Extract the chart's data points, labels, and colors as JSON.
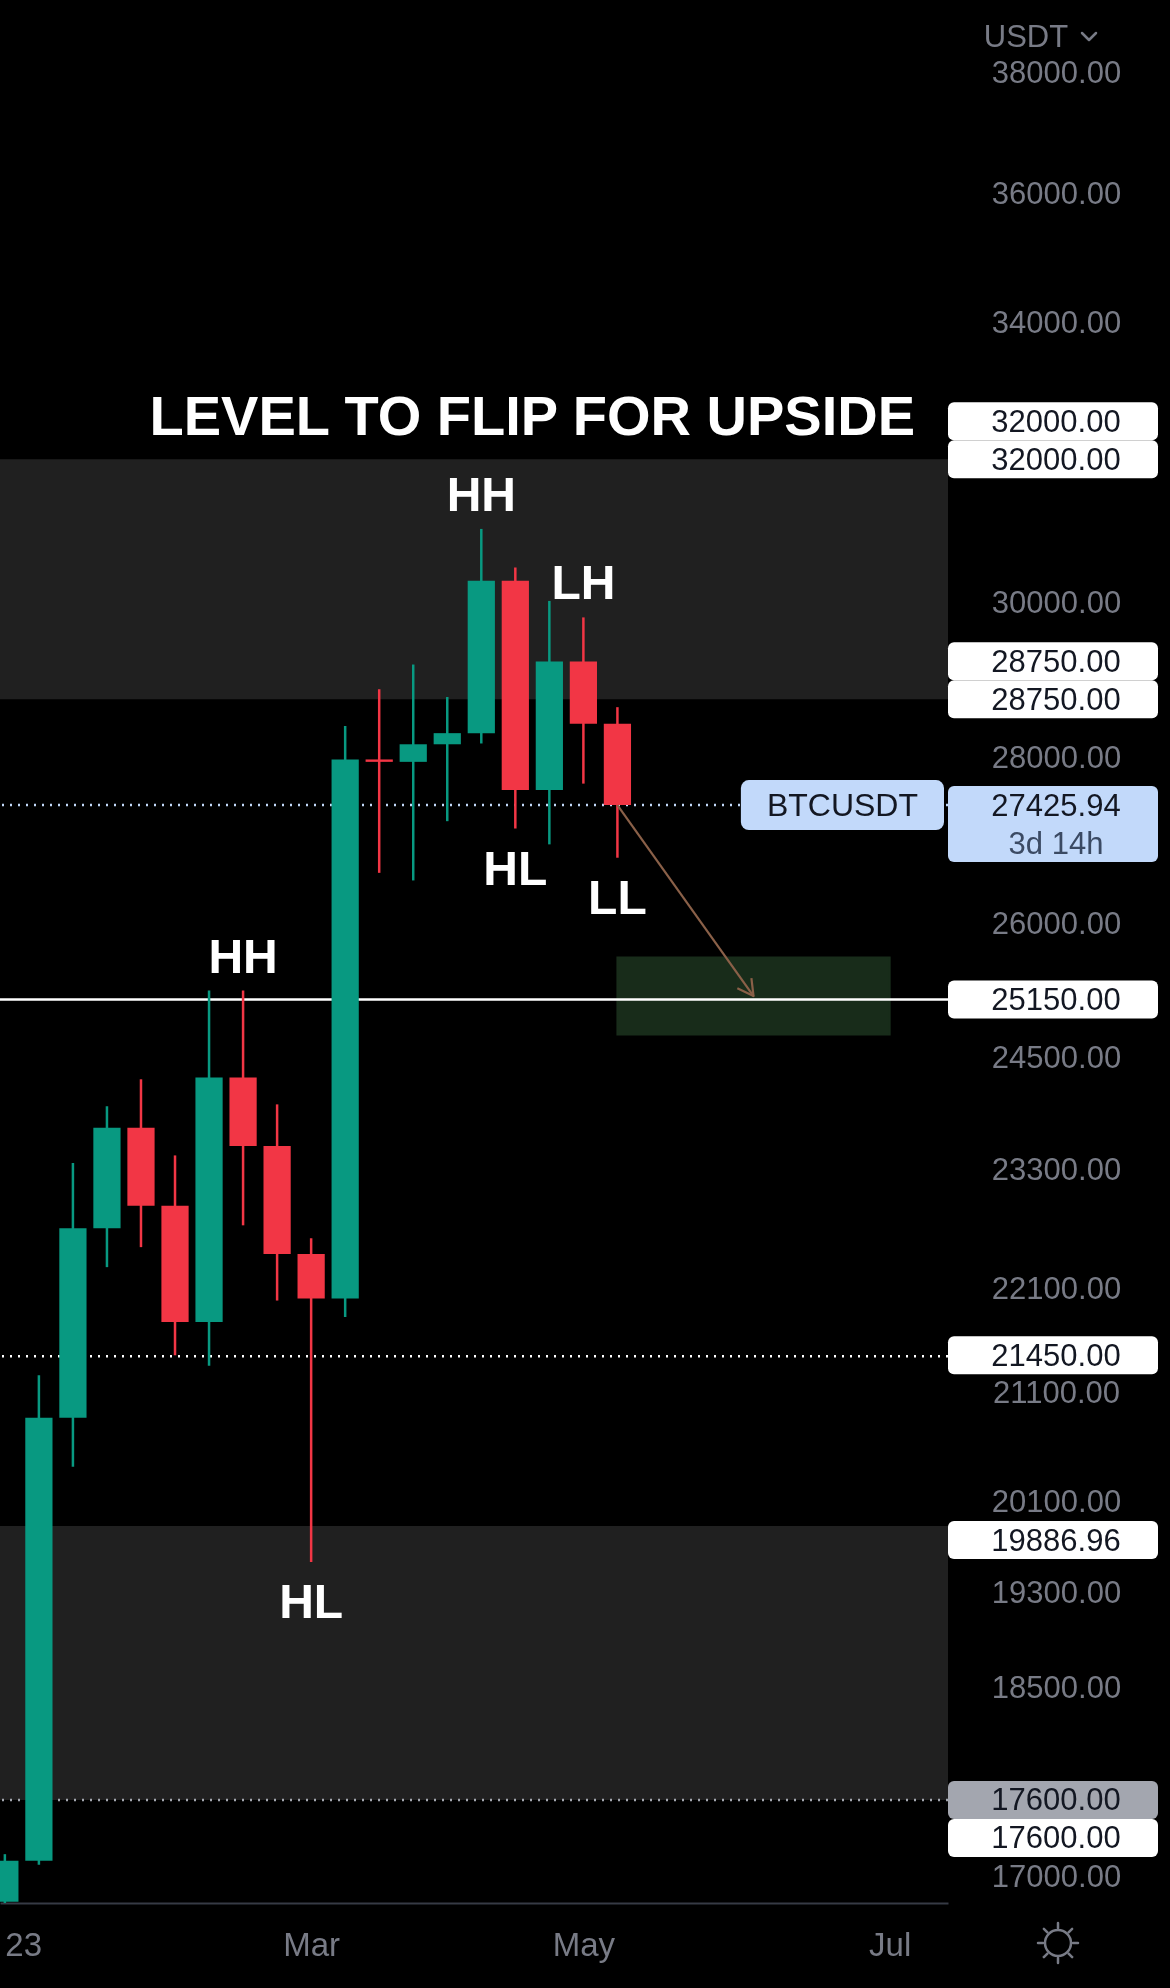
{
  "chart_data": {
    "type": "candlestick",
    "x": [
      "2023-01-02",
      "2023-01-09",
      "2023-01-16",
      "2023-01-23",
      "2023-01-30",
      "2023-02-06",
      "2023-02-13",
      "2023-02-20",
      "2023-02-27",
      "2023-03-06",
      "2023-03-13",
      "2023-03-20",
      "2023-03-27",
      "2023-04-03",
      "2023-04-10",
      "2023-04-17",
      "2023-04-24",
      "2023-05-01",
      "2023-05-08"
    ],
    "ohlc": [
      [
        16820,
        17180,
        16810,
        17130
      ],
      [
        17130,
        21270,
        17100,
        20870
      ],
      [
        20870,
        23380,
        20420,
        22710
      ],
      [
        22710,
        23980,
        22320,
        23750
      ],
      [
        23750,
        24270,
        22520,
        22940
      ],
      [
        22940,
        23460,
        21460,
        21780
      ],
      [
        21780,
        25250,
        21360,
        24290
      ],
      [
        24290,
        25250,
        22740,
        23560
      ],
      [
        23560,
        24000,
        21990,
        22450
      ],
      [
        22450,
        22610,
        19570,
        22010
      ],
      [
        22010,
        28410,
        21830,
        27990
      ],
      [
        27990,
        28880,
        26610,
        27960
      ],
      [
        27960,
        29200,
        26520,
        28180
      ],
      [
        28180,
        28780,
        27230,
        28320
      ],
      [
        28320,
        31020,
        28190,
        30310
      ],
      [
        30310,
        30490,
        27140,
        27610
      ],
      [
        27610,
        30040,
        26950,
        29240
      ],
      [
        29240,
        29820,
        27690,
        28440
      ],
      [
        28440,
        28650,
        26790,
        27425.94
      ]
    ],
    "colors": [
      "#089981",
      "#089981",
      "#089981",
      "#089981",
      "#f23645",
      "#f23645",
      "#089981",
      "#f23645",
      "#f23645",
      "#f23645",
      "#089981",
      "#f23645",
      "#089981",
      "#089981",
      "#089981",
      "#f23645",
      "#089981",
      "#f23645",
      "#f23645"
    ],
    "series": [
      {
        "type": "line",
        "x": [
          "2023-05-08",
          "2023-07-03"
        ],
        "values": [
          null,
          null
        ],
        "lower": [
          24759,
          24759
        ],
        "upper": [
          25624,
          25624
        ],
        "color": "#182c1a"
      }
    ],
    "ylabel": "USDT",
    "xlim": [
      "2023-01-01",
      "2023-07-15"
    ],
    "xticks": [
      {
        "value": "2023-01-02",
        "label": "23"
      },
      {
        "value": "2023-03-06",
        "label": "Mar"
      },
      {
        "value": "2023-05-01",
        "label": "May"
      },
      {
        "value": "2023-07-03",
        "label": "Jul"
      }
    ],
    "ylim": [
      16810,
      39270
    ],
    "yticks": [
      {
        "value": 17000,
        "label": "17000.00"
      },
      {
        "value": 18500,
        "label": "18500.00"
      },
      {
        "value": 19300,
        "label": "19300.00"
      },
      {
        "value": 20100,
        "label": "20100.00"
      },
      {
        "value": 21100,
        "label": "21100.00"
      },
      {
        "value": 22100,
        "label": "22100.00"
      },
      {
        "value": 23300,
        "label": "23300.00"
      },
      {
        "value": 24500,
        "label": "24500.00"
      },
      {
        "value": 26000,
        "label": "26000.00"
      },
      {
        "value": 28000,
        "label": "28000.00"
      },
      {
        "value": 30000,
        "label": "30000.00"
      },
      {
        "value": 34000,
        "label": "34000.00"
      },
      {
        "value": 36000,
        "label": "36000.00"
      },
      {
        "value": 38000,
        "label": "38000.00"
      }
    ],
    "log": true,
    "bands": [
      {
        "axis": "y",
        "from": 28750,
        "to": 32000,
        "label": "LEVEL TO FLIP FOR UPSIDE",
        "color": "#202020"
      },
      {
        "axis": "y",
        "from": 17600,
        "to": 19886.96,
        "color": "#202020"
      }
    ],
    "ref_lines": [
      {
        "axis": "y",
        "value": 27425.94,
        "label": "BTCUSDT",
        "line_style": "dotted",
        "color": "#c2d9fa"
      },
      {
        "axis": "y",
        "value": 25150,
        "line_style": "solid",
        "color": "#ffffff"
      },
      {
        "axis": "y",
        "value": 21450,
        "line_style": "dotted",
        "color": "#ffffff"
      },
      {
        "axis": "y",
        "value": 17600,
        "line_style": "dotted",
        "color": "#a3a6af"
      }
    ],
    "annotations": [
      {
        "text": "HH",
        "x": "2023-02-20",
        "y": 25250
      },
      {
        "text": "HL",
        "x": "2023-03-06",
        "y": 19570
      },
      {
        "text": "HH",
        "x": "2023-04-10",
        "y": 31020
      },
      {
        "text": "LH",
        "x": "2023-05-01",
        "y": 29820
      },
      {
        "text": "HL",
        "x": "2023-04-17",
        "y": 27140
      },
      {
        "text": "LL",
        "x": "2023-05-08",
        "y": 26790
      },
      {
        "text": "32000.00",
        "x": "2023-07-15",
        "y": 32000
      },
      {
        "text": "32000.00",
        "x": "2023-07-15",
        "y": 32000
      },
      {
        "text": "28750.00",
        "x": "2023-07-15",
        "y": 28750
      },
      {
        "text": "28750.00",
        "x": "2023-07-15",
        "y": 28750
      },
      {
        "text": "27425.94",
        "x": "2023-07-15",
        "y": 27425.94
      },
      {
        "text": "25150.00",
        "x": "2023-07-15",
        "y": 25150
      },
      {
        "text": "21450.00",
        "x": "2023-07-15",
        "y": 21450
      },
      {
        "text": "19886.96",
        "x": "2023-07-15",
        "y": 19886.96
      },
      {
        "text": "17600.00",
        "x": "2023-07-15",
        "y": 17600
      },
      {
        "text": "17600.00",
        "x": "2023-07-15",
        "y": 17600
      },
      "3d 14h"
    ]
  }
}
